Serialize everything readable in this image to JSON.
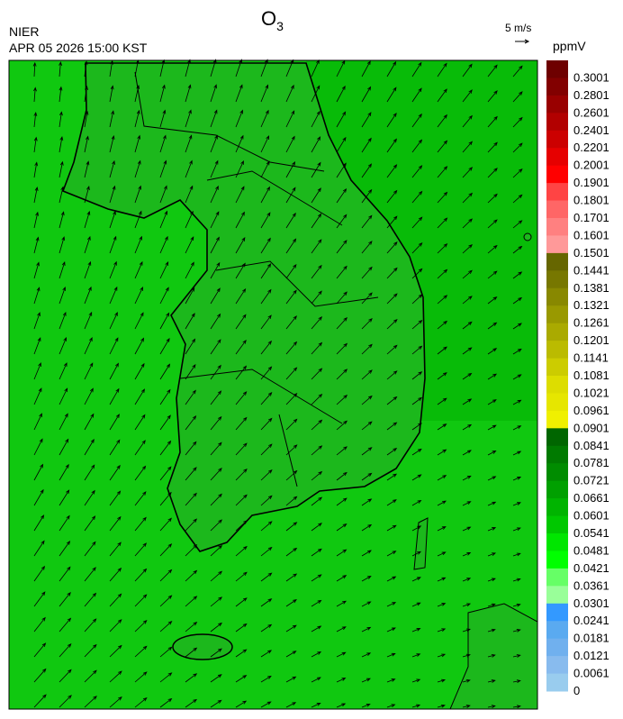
{
  "header": {
    "title": {
      "text": "O",
      "subscript": "3"
    },
    "agency": "NIER",
    "datetime": "APR 05 2026 15:00 KST",
    "wind_reference": "5 m/s"
  },
  "legend": {
    "unit": "ppmV",
    "labels": [
      "0.3001",
      "0.2801",
      "0.2601",
      "0.2401",
      "0.2201",
      "0.2001",
      "0.1901",
      "0.1801",
      "0.1701",
      "0.1601",
      "0.1501",
      "0.1441",
      "0.1381",
      "0.1321",
      "0.1261",
      "0.1201",
      "0.1141",
      "0.1081",
      "0.1021",
      "0.0961",
      "0.0901",
      "0.0841",
      "0.0781",
      "0.0721",
      "0.0661",
      "0.0601",
      "0.0541",
      "0.0481",
      "0.0421",
      "0.0361",
      "0.0301",
      "0.0241",
      "0.0181",
      "0.0121",
      "0.0061",
      "0"
    ],
    "colors": [
      "#6e0000",
      "#820000",
      "#990000",
      "#b20000",
      "#cc0000",
      "#e60000",
      "#ff0000",
      "#ff4444",
      "#ff6666",
      "#ff8080",
      "#ff9999",
      "#666600",
      "#777700",
      "#888800",
      "#999900",
      "#aaaa00",
      "#bbbb00",
      "#cccc00",
      "#dddd00",
      "#e6e600",
      "#f0f000",
      "#006600",
      "#007a00",
      "#008c00",
      "#00a000",
      "#00b400",
      "#00c800",
      "#00e600",
      "#00ff00",
      "#66ff66",
      "#99ff99",
      "#3399ff",
      "#5aaaf0",
      "#70b0ee",
      "#88bbee",
      "#99ccee"
    ]
  }
}
